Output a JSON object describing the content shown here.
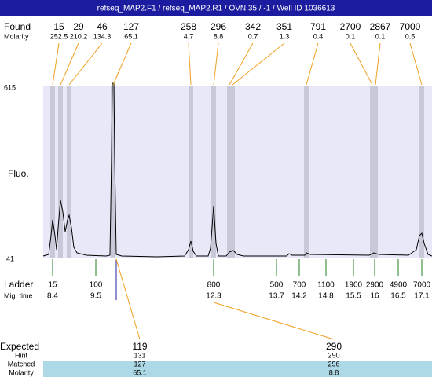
{
  "title": "refseq_MAP2.F1 / refseq_MAP2.R1 / OVN 35 / -1 / Well ID 1036613",
  "found": {
    "label": "Found",
    "molarity_label": "Molarity",
    "peaks": [
      {
        "size": 15,
        "molarity": 252.5
      },
      {
        "size": 29,
        "molarity": 210.2
      },
      {
        "size": 46,
        "molarity": 134.3
      },
      {
        "size": 127,
        "molarity": 65.1
      },
      {
        "size": 258,
        "molarity": 4.7
      },
      {
        "size": 296,
        "molarity": 8.8
      },
      {
        "size": 342,
        "molarity": 0.7
      },
      {
        "size": 351,
        "molarity": 1.3
      },
      {
        "size": 791,
        "molarity": 0.4
      },
      {
        "size": 2700,
        "molarity": 0.1
      },
      {
        "size": 2867,
        "molarity": 0.1
      },
      {
        "size": 7000,
        "molarity": 0.5
      }
    ]
  },
  "axis": {
    "top": 615,
    "bottom": 41,
    "label": "Fluo."
  },
  "ladder": {
    "label": "Ladder",
    "time_label": "Mig. time",
    "sizes": [
      15,
      100,
      800,
      500,
      700,
      1100,
      1900,
      2900,
      4900,
      7000
    ],
    "times": [
      8.4,
      9.5,
      12.3,
      13.7,
      14.2,
      14.8,
      15.5,
      16,
      16.5,
      17.1
    ]
  },
  "expected": {
    "label": "Expected",
    "hint_label": "Hint",
    "matched_label": "Matched",
    "molarity_label": "Molarity",
    "columns": [
      {
        "expected": 119,
        "hint": 131,
        "matched": 127,
        "molarity": 65.1
      },
      {
        "expected": 290,
        "hint": 290,
        "matched": 296,
        "molarity": 8.8
      }
    ]
  }
}
